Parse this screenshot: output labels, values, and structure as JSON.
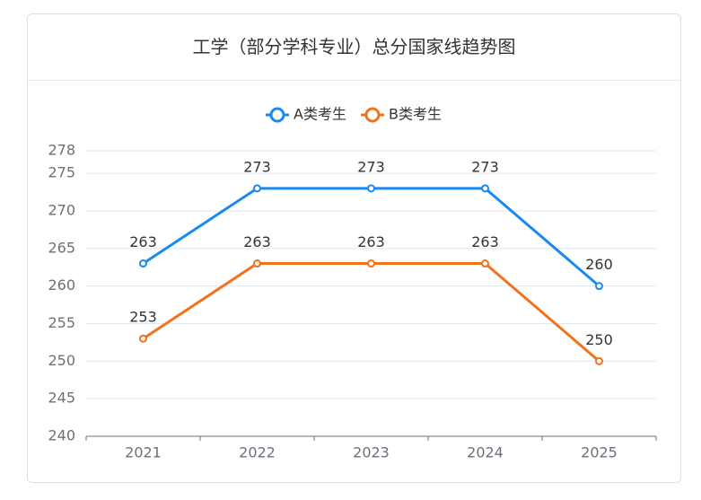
{
  "chart_data": {
    "type": "line",
    "title": "工学（部分学科专业）总分国家线趋势图",
    "categories": [
      "2021",
      "2022",
      "2023",
      "2024",
      "2025"
    ],
    "series": [
      {
        "name": "A类考生",
        "color": "#1b8af0",
        "values": [
          263,
          273,
          273,
          273,
          260
        ]
      },
      {
        "name": "B类考生",
        "color": "#f2711c",
        "values": [
          253,
          263,
          263,
          263,
          250
        ]
      }
    ],
    "ylim": [
      240,
      278
    ],
    "yticks": [
      240,
      245,
      250,
      255,
      260,
      265,
      270,
      275,
      278
    ],
    "grid": true,
    "legend": "top",
    "data_labels": true
  }
}
